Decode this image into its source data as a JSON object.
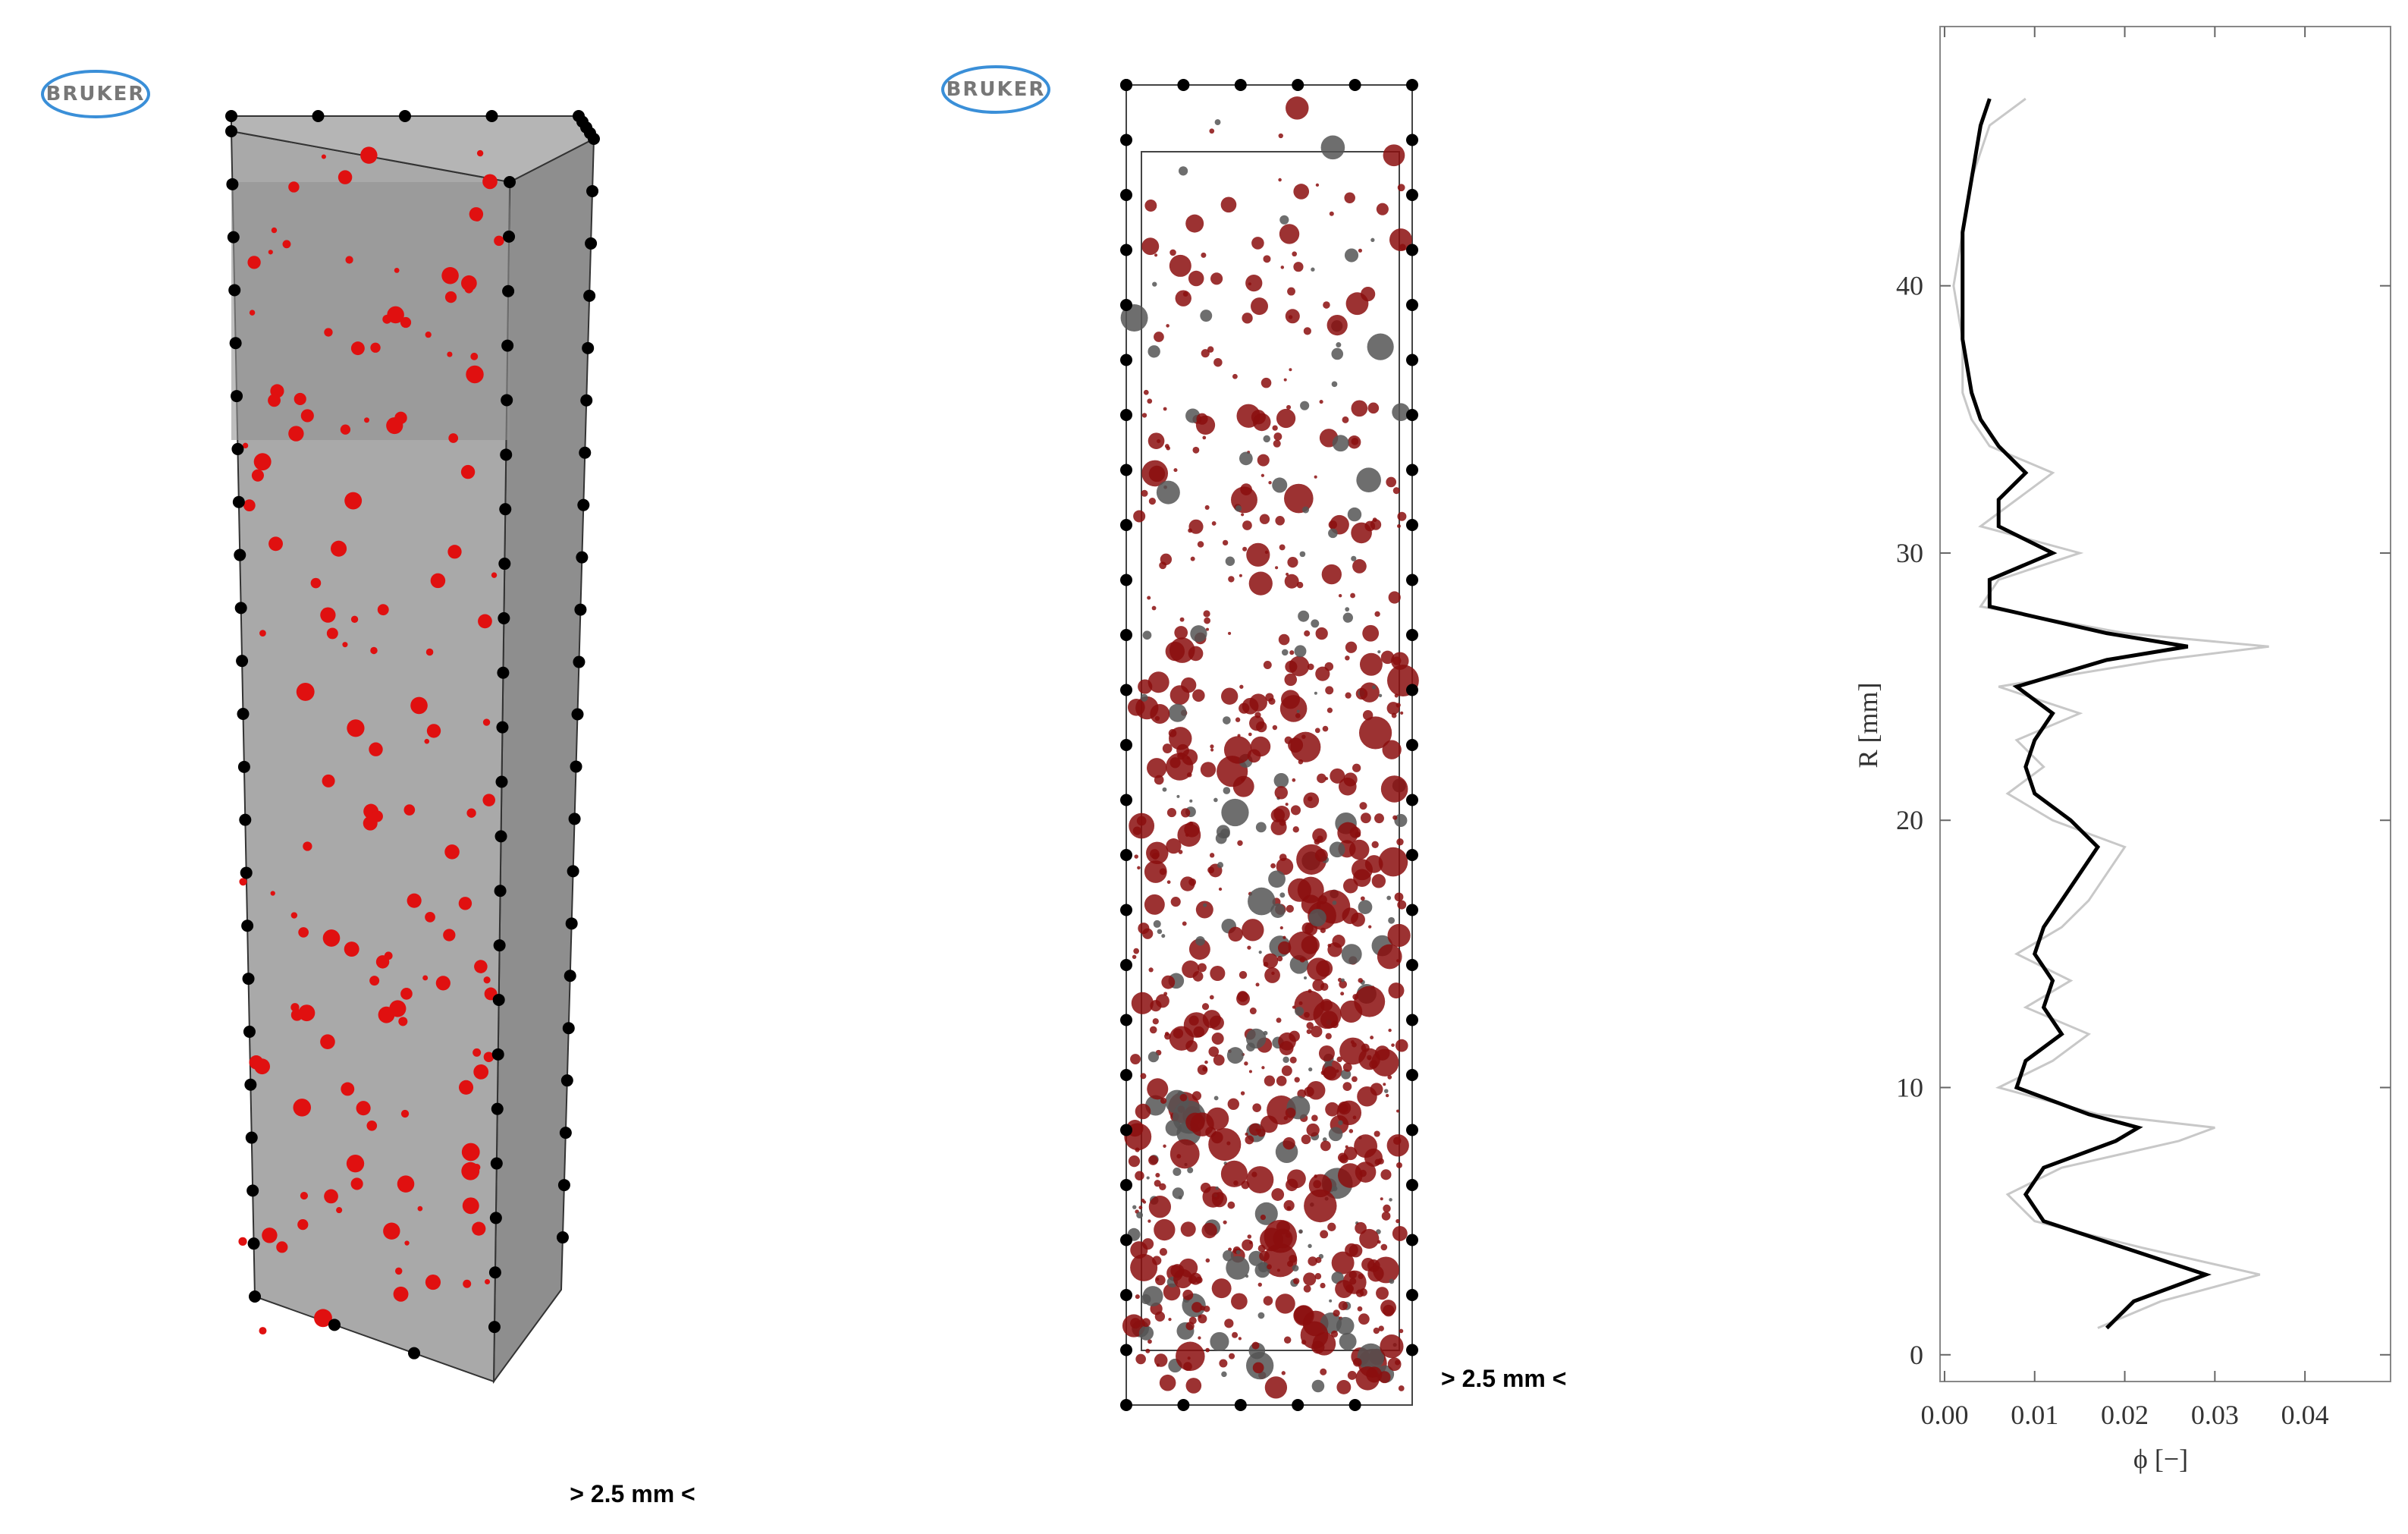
{
  "panels": [
    {
      "logo": "BRUKER",
      "scale_label": "> 2.5 mm <"
    },
    {
      "logo": "BRUKER",
      "scale_label": "> 2.5 mm <"
    }
  ],
  "chart_data": {
    "type": "line",
    "xlabel": "ϕ [−]",
    "ylabel": "R [mm]",
    "xlim": [
      -0.0005,
      0.0495
    ],
    "ylim": [
      -1,
      49.7
    ],
    "xticks": [
      {
        "value": 0,
        "label": "0.00"
      },
      {
        "value": 0.01,
        "label": "0.01"
      },
      {
        "value": 0.02,
        "label": "0.02"
      },
      {
        "value": 0.03,
        "label": "0.03"
      },
      {
        "value": 0.04,
        "label": "0.04"
      }
    ],
    "yticks": [
      0,
      10,
      20,
      30,
      40
    ],
    "y": [
      1,
      2,
      3,
      4,
      5,
      6,
      7,
      8,
      8.5,
      9,
      10,
      11,
      12,
      13,
      14,
      15,
      16,
      17,
      18,
      19,
      20,
      21,
      22,
      23,
      24,
      25,
      26,
      26.5,
      27,
      28,
      29,
      30,
      31,
      32,
      33,
      34,
      35,
      36,
      38,
      40,
      42,
      44,
      46,
      47
    ],
    "series": [
      {
        "color": "#c8c8c8",
        "values": [
          0.017,
          0.024,
          0.035,
          0.022,
          0.01,
          0.007,
          0.013,
          0.026,
          0.03,
          0.017,
          0.006,
          0.012,
          0.016,
          0.009,
          0.014,
          0.008,
          0.013,
          0.016,
          0.018,
          0.02,
          0.012,
          0.007,
          0.011,
          0.008,
          0.015,
          0.006,
          0.024,
          0.036,
          0.02,
          0.004,
          0.006,
          0.015,
          0.004,
          0.008,
          0.012,
          0.005,
          0.003,
          0.002,
          0.002,
          0.001,
          0.002,
          0.003,
          0.005,
          0.009
        ]
      },
      {
        "color": "#000000",
        "values": [
          0.018,
          0.021,
          0.029,
          0.02,
          0.011,
          0.009,
          0.011,
          0.019,
          0.0215,
          0.016,
          0.008,
          0.009,
          0.013,
          0.011,
          0.012,
          0.01,
          0.011,
          0.013,
          0.015,
          0.017,
          0.014,
          0.01,
          0.009,
          0.01,
          0.012,
          0.008,
          0.018,
          0.027,
          0.018,
          0.005,
          0.005,
          0.012,
          0.006,
          0.006,
          0.009,
          0.006,
          0.004,
          0.003,
          0.002,
          0.002,
          0.002,
          0.003,
          0.004,
          0.005
        ]
      }
    ]
  }
}
